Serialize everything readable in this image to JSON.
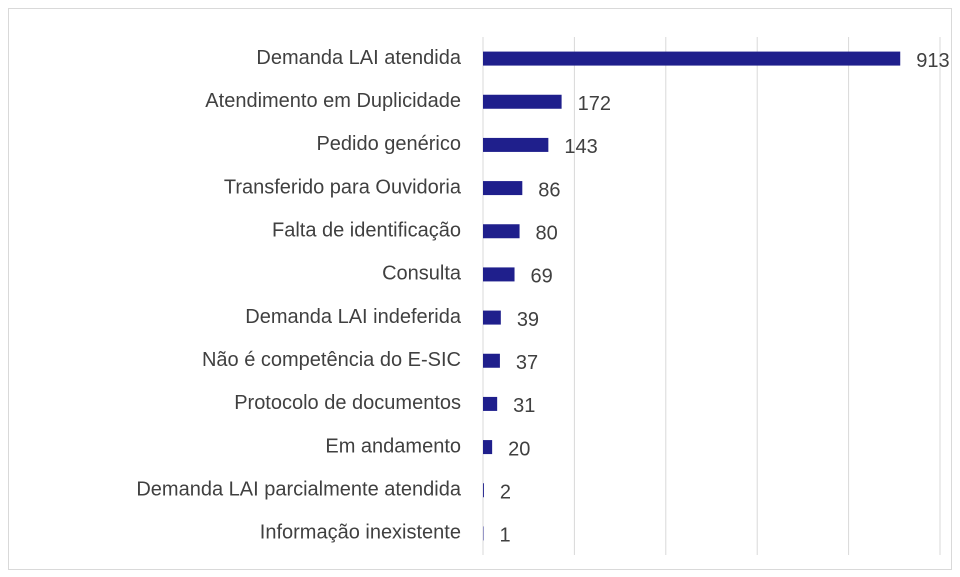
{
  "chart_data": {
    "type": "bar",
    "orientation": "horizontal",
    "categories": [
      "Demanda LAI atendida",
      "Atendimento em Duplicidade",
      "Pedido genérico",
      "Transferido para Ouvidoria",
      "Falta de identificação",
      "Consulta",
      "Demanda LAI indeferida",
      "Não é competência do E-SIC",
      "Protocolo de documentos",
      "Em andamento",
      "Demanda LAI parcialmente atendida",
      "Informação inexistente"
    ],
    "values": [
      913,
      172,
      143,
      86,
      80,
      69,
      39,
      37,
      31,
      20,
      2,
      1
    ],
    "color": "#1f1f8c",
    "xlim": [
      0,
      1000
    ],
    "xticks": [
      0,
      200,
      400,
      600,
      800,
      1000
    ],
    "grid": true
  }
}
